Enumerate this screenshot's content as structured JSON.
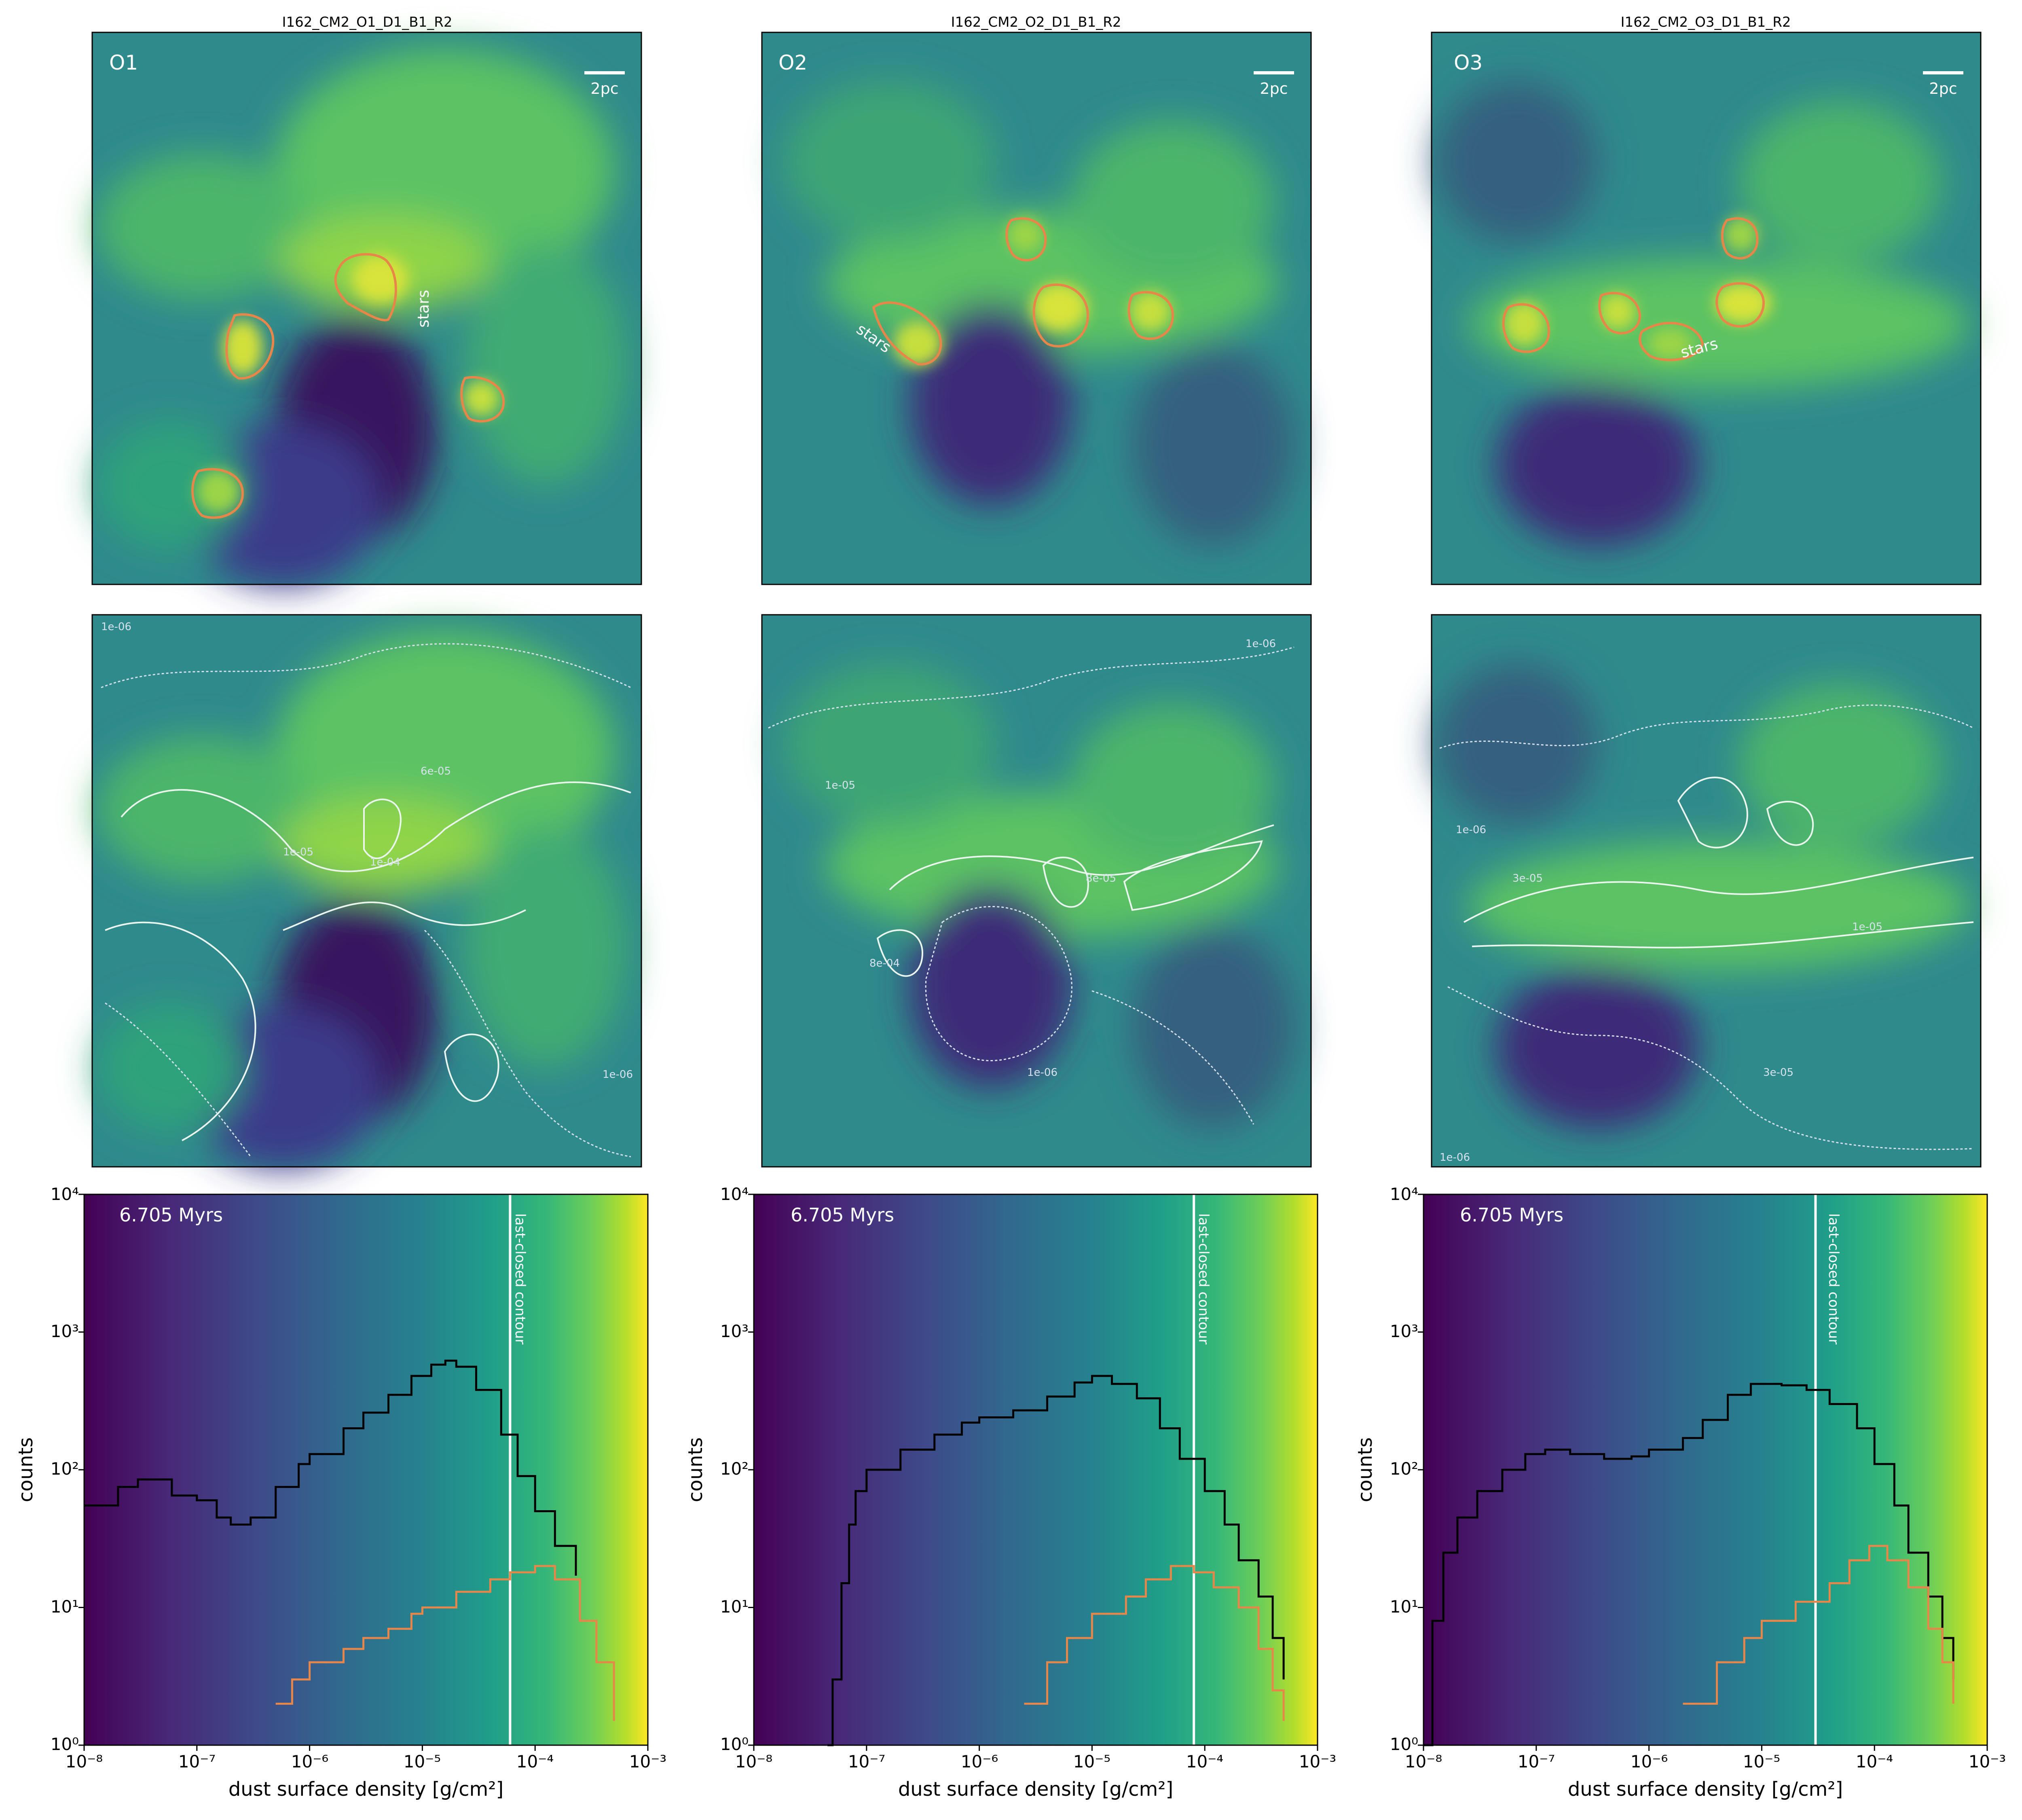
{
  "figure": {
    "columns": [
      {
        "title": "I162_CM2_O1_D1_B1_R2",
        "tag": "O1"
      },
      {
        "title": "I162_CM2_O2_D1_B1_R2",
        "tag": "O2"
      },
      {
        "title": "I162_CM2_O3_D1_B1_R2",
        "tag": "O3"
      }
    ],
    "scalebar_label": "2pc",
    "stars_label": "stars",
    "time_label": "6.705 Myrs",
    "vline_label": "last-closed contour",
    "contour_labels": [
      [
        "1e-06",
        "1e-05",
        "6e-05",
        "1e-04",
        "1e-06"
      ],
      [
        "1e-06",
        "1e-05",
        "8e-05",
        "8e-04",
        "1e-06"
      ],
      [
        "1e-06",
        "3e-05",
        "1e-05",
        "3e-05",
        "1e-06"
      ]
    ]
  },
  "chart_data": [
    {
      "type": "step-histogram",
      "title": "",
      "xlabel": "dust surface density [g/cm²]",
      "ylabel": "counts",
      "xscale": "log",
      "yscale": "log",
      "xlim": [
        1e-08,
        0.001
      ],
      "ylim": [
        1,
        10000
      ],
      "x_ticks": [
        "10⁻⁸",
        "10⁻⁷",
        "10⁻⁶",
        "10⁻⁵",
        "10⁻⁴",
        "10⁻³"
      ],
      "y_ticks": [
        "10⁰",
        "10¹",
        "10²",
        "10³",
        "10⁴"
      ],
      "background": "viridis gradient along x",
      "last_closed_contour": 6e-05,
      "series": [
        {
          "color": "#000000",
          "points": [
            [
              1e-08,
              55
            ],
            [
              2e-08,
              75
            ],
            [
              3e-08,
              85
            ],
            [
              6e-08,
              65
            ],
            [
              1e-07,
              60
            ],
            [
              1.5e-07,
              45
            ],
            [
              2e-07,
              40
            ],
            [
              3e-07,
              45
            ],
            [
              5e-07,
              75
            ],
            [
              8e-07,
              110
            ],
            [
              1e-06,
              130
            ],
            [
              2e-06,
              200
            ],
            [
              3e-06,
              260
            ],
            [
              5e-06,
              350
            ],
            [
              8e-06,
              480
            ],
            [
              1.2e-05,
              580
            ],
            [
              1.6e-05,
              620
            ],
            [
              2e-05,
              560
            ],
            [
              3e-05,
              380
            ],
            [
              5e-05,
              180
            ],
            [
              7e-05,
              90
            ],
            [
              0.0001,
              50
            ],
            [
              0.00015,
              28
            ],
            [
              0.00023,
              17
            ]
          ]
        },
        {
          "color": "#e8864a",
          "points": [
            [
              5e-07,
              2
            ],
            [
              7e-07,
              3
            ],
            [
              1e-06,
              4
            ],
            [
              2e-06,
              5
            ],
            [
              3e-06,
              6
            ],
            [
              5e-06,
              7
            ],
            [
              8e-06,
              9
            ],
            [
              1e-05,
              10
            ],
            [
              2e-05,
              13
            ],
            [
              4e-05,
              16
            ],
            [
              6e-05,
              18
            ],
            [
              0.0001,
              20
            ],
            [
              0.00015,
              16
            ],
            [
              0.00025,
              8
            ],
            [
              0.00035,
              4
            ],
            [
              0.0005,
              1.5
            ]
          ]
        }
      ]
    },
    {
      "type": "step-histogram",
      "title": "",
      "xlabel": "dust surface density [g/cm²]",
      "ylabel": "counts",
      "xscale": "log",
      "yscale": "log",
      "xlim": [
        1e-08,
        0.001
      ],
      "ylim": [
        1,
        10000
      ],
      "x_ticks": [
        "10⁻⁸",
        "10⁻⁷",
        "10⁻⁶",
        "10⁻⁵",
        "10⁻⁴",
        "10⁻³"
      ],
      "y_ticks": [
        "10⁰",
        "10¹",
        "10²",
        "10³",
        "10⁴"
      ],
      "background": "viridis gradient along x",
      "last_closed_contour": 8e-05,
      "series": [
        {
          "color": "#000000",
          "points": [
            [
              4.5e-08,
              1
            ],
            [
              5e-08,
              3
            ],
            [
              6e-08,
              15
            ],
            [
              7e-08,
              40
            ],
            [
              8e-08,
              70
            ],
            [
              1e-07,
              100
            ],
            [
              2e-07,
              140
            ],
            [
              4e-07,
              180
            ],
            [
              7e-07,
              220
            ],
            [
              1e-06,
              240
            ],
            [
              2e-06,
              270
            ],
            [
              4e-06,
              340
            ],
            [
              7e-06,
              430
            ],
            [
              1e-05,
              480
            ],
            [
              1.5e-05,
              420
            ],
            [
              2.5e-05,
              330
            ],
            [
              4e-05,
              200
            ],
            [
              6e-05,
              120
            ],
            [
              0.0001,
              70
            ],
            [
              0.00015,
              40
            ],
            [
              0.0002,
              22
            ],
            [
              0.0003,
              12
            ],
            [
              0.0004,
              6
            ],
            [
              0.0005,
              3
            ]
          ]
        },
        {
          "color": "#e8864a",
          "points": [
            [
              2.5e-06,
              2
            ],
            [
              4e-06,
              4
            ],
            [
              6e-06,
              6
            ],
            [
              1e-05,
              9
            ],
            [
              2e-05,
              12
            ],
            [
              3e-05,
              16
            ],
            [
              5e-05,
              20
            ],
            [
              8e-05,
              18
            ],
            [
              0.00012,
              14
            ],
            [
              0.0002,
              10
            ],
            [
              0.0003,
              5
            ],
            [
              0.0004,
              2.5
            ],
            [
              0.0005,
              1.5
            ]
          ]
        }
      ]
    },
    {
      "type": "step-histogram",
      "title": "",
      "xlabel": "dust surface density [g/cm²]",
      "ylabel": "counts",
      "xscale": "log",
      "yscale": "log",
      "xlim": [
        1e-08,
        0.001
      ],
      "ylim": [
        1,
        10000
      ],
      "x_ticks": [
        "10⁻⁸",
        "10⁻⁷",
        "10⁻⁶",
        "10⁻⁵",
        "10⁻⁴",
        "10⁻³"
      ],
      "y_ticks": [
        "10⁰",
        "10¹",
        "10²",
        "10³",
        "10⁴"
      ],
      "background": "viridis gradient along x",
      "last_closed_contour": 3e-05,
      "series": [
        {
          "color": "#000000",
          "points": [
            [
              1e-08,
              1
            ],
            [
              1.2e-08,
              8
            ],
            [
              1.5e-08,
              25
            ],
            [
              2e-08,
              45
            ],
            [
              3e-08,
              70
            ],
            [
              5e-08,
              100
            ],
            [
              8e-08,
              130
            ],
            [
              1.2e-07,
              140
            ],
            [
              2e-07,
              130
            ],
            [
              4e-07,
              120
            ],
            [
              7e-07,
              125
            ],
            [
              1e-06,
              140
            ],
            [
              2e-06,
              170
            ],
            [
              3e-06,
              230
            ],
            [
              5e-06,
              350
            ],
            [
              8e-06,
              420
            ],
            [
              1.5e-05,
              410
            ],
            [
              2.5e-05,
              380
            ],
            [
              4e-05,
              300
            ],
            [
              7e-05,
              200
            ],
            [
              0.0001,
              110
            ],
            [
              0.00015,
              55
            ],
            [
              0.0002,
              25
            ],
            [
              0.0003,
              12
            ],
            [
              0.0004,
              6
            ],
            [
              0.0005,
              3
            ]
          ]
        },
        {
          "color": "#e8864a",
          "points": [
            [
              2e-06,
              2
            ],
            [
              4e-06,
              4
            ],
            [
              7e-06,
              6
            ],
            [
              1e-05,
              8
            ],
            [
              2e-05,
              11
            ],
            [
              4e-05,
              15
            ],
            [
              6e-05,
              22
            ],
            [
              9e-05,
              28
            ],
            [
              0.00013,
              22
            ],
            [
              0.0002,
              14
            ],
            [
              0.0003,
              7
            ],
            [
              0.0004,
              4
            ],
            [
              0.0005,
              2
            ]
          ]
        }
      ]
    }
  ]
}
